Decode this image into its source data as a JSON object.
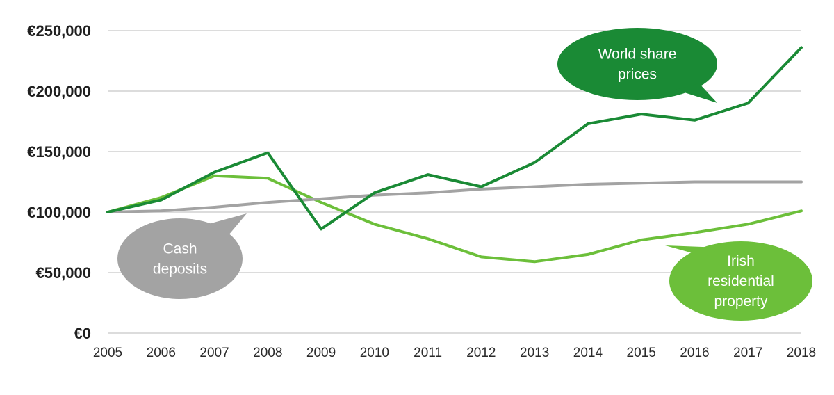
{
  "chart_data": {
    "type": "line",
    "x": [
      "2005",
      "2006",
      "2007",
      "2008",
      "2009",
      "2010",
      "2011",
      "2012",
      "2013",
      "2014",
      "2015",
      "2016",
      "2017",
      "2018"
    ],
    "ylim": [
      0,
      250000
    ],
    "yticks": [
      {
        "value": 0,
        "label": "€0"
      },
      {
        "value": 50000,
        "label": "€50,000"
      },
      {
        "value": 100000,
        "label": "€100,000"
      },
      {
        "value": 150000,
        "label": "€150,000"
      },
      {
        "value": 200000,
        "label": "€200,000"
      },
      {
        "value": 250000,
        "label": "€250,000"
      }
    ],
    "grid": true,
    "series": [
      {
        "name": "World share prices",
        "color": "#1a8a35",
        "values": [
          100000,
          110000,
          133000,
          149000,
          86000,
          116000,
          131000,
          121000,
          141000,
          173000,
          181000,
          176000,
          190000,
          236000
        ],
        "callout_lines": [
          "World share",
          "prices"
        ]
      },
      {
        "name": "Irish residential property",
        "color": "#6cbf3a",
        "values": [
          100000,
          112000,
          130000,
          128000,
          108000,
          90000,
          78000,
          63000,
          59000,
          65000,
          77000,
          83000,
          90000,
          101000
        ],
        "callout_lines": [
          "Irish",
          "residential",
          "property"
        ]
      },
      {
        "name": "Cash deposits",
        "color": "#a3a3a3",
        "values": [
          100000,
          101000,
          104000,
          108000,
          111000,
          114000,
          116000,
          119000,
          121000,
          123000,
          124000,
          125000,
          125000,
          125000
        ],
        "callout_lines": [
          "Cash",
          "deposits"
        ]
      }
    ]
  }
}
